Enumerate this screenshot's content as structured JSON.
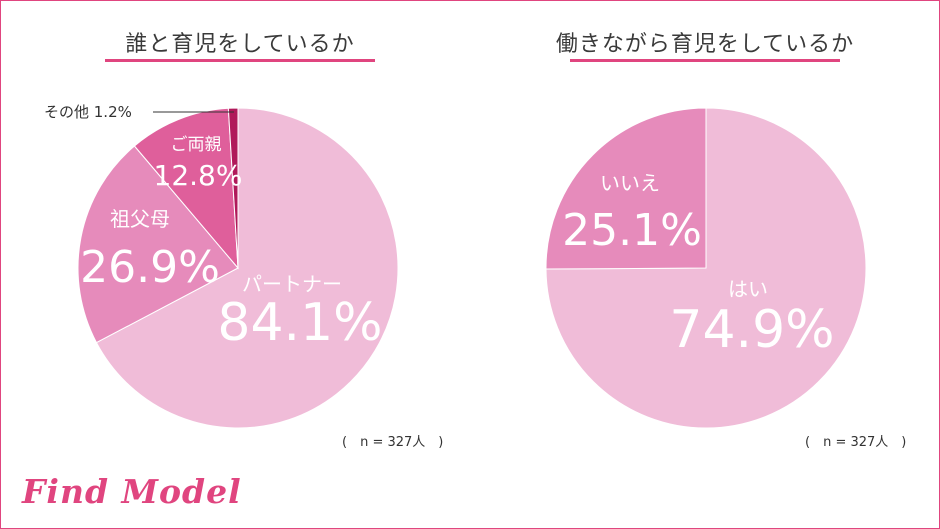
{
  "notes": {
    "left": "(　n = 327人　)",
    "right": "(　n = 327人　)"
  },
  "logo": "Find Model",
  "colors": {
    "frame": "#e0457f",
    "pie_light": "#f0bcd8",
    "pie_medium": "#e68bbb",
    "pie_dark": "#df5f9b",
    "pie_darkest": "#b0195a"
  },
  "chart_data": [
    {
      "type": "pie",
      "title": "誰と育児をしているか",
      "slices": [
        {
          "name": "パートナー",
          "value": 84.1,
          "label": "84.1%"
        },
        {
          "name": "祖父母",
          "value": 26.9,
          "label": "26.9%"
        },
        {
          "name": "ご両親",
          "value": 12.8,
          "label": "12.8%"
        },
        {
          "name": "その他",
          "value": 1.2,
          "label": "1.2%"
        }
      ],
      "note": "n = 327人"
    },
    {
      "type": "pie",
      "title": "働きながら育児をしているか",
      "slices": [
        {
          "name": "はい",
          "value": 74.9,
          "label": "74.9%"
        },
        {
          "name": "いいえ",
          "value": 25.1,
          "label": "25.1%"
        }
      ],
      "note": "n = 327人"
    }
  ]
}
